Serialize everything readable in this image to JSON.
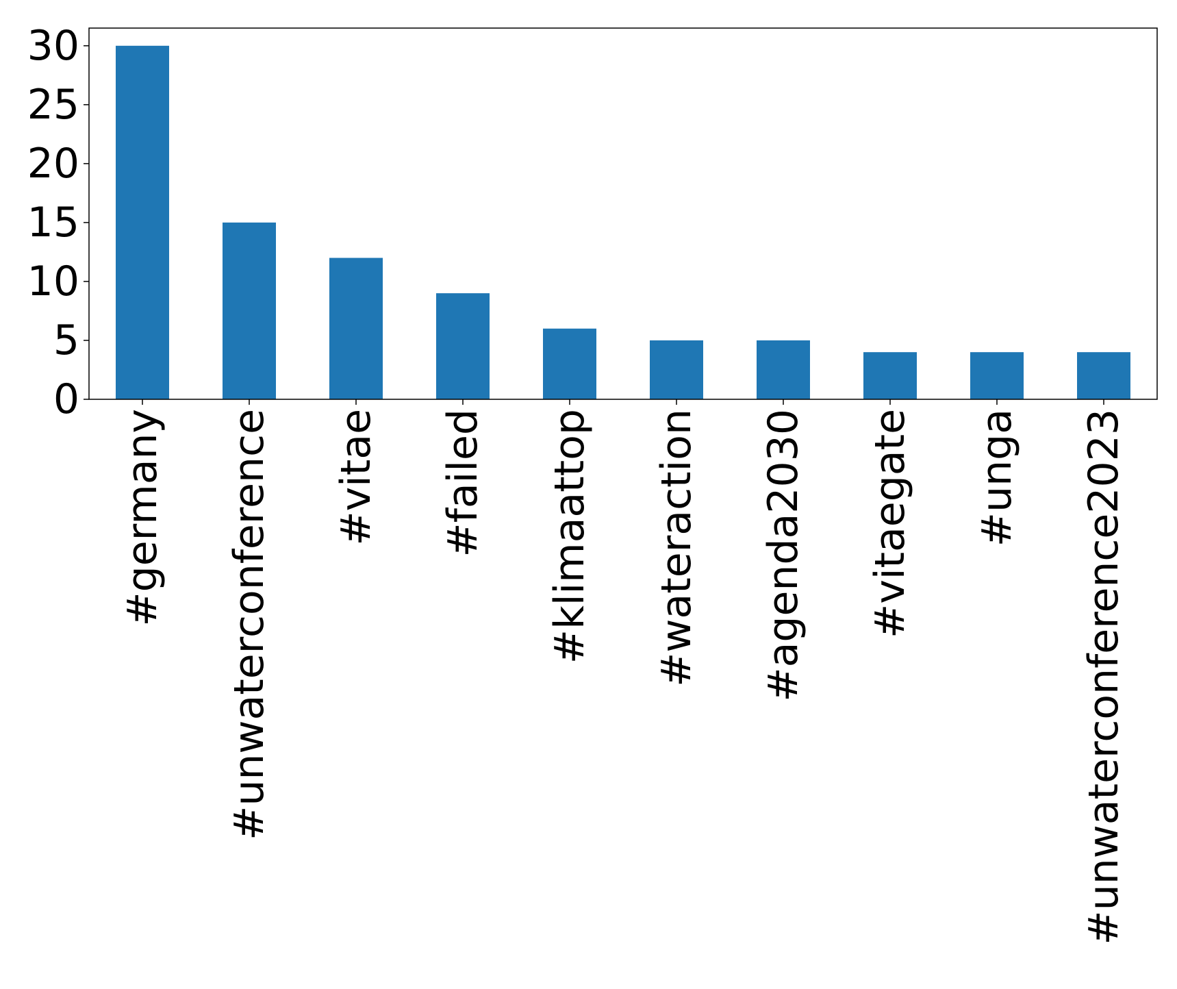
{
  "chart_data": {
    "type": "bar",
    "title": "",
    "xlabel": "",
    "ylabel": "",
    "categories": [
      "#germany",
      "#unwaterconference",
      "#vitae",
      "#failed",
      "#klimaattop",
      "#wateraction",
      "#agenda2030",
      "#vitaegate",
      "#unga",
      "#unwaterconference2023"
    ],
    "values": [
      30,
      15,
      12,
      9,
      6,
      5,
      5,
      4,
      4,
      4
    ],
    "ylim": [
      0,
      31.5
    ],
    "yticks": [
      0,
      5,
      10,
      15,
      20,
      25,
      30
    ],
    "grid": false,
    "legend": "none",
    "bar_color": "#1f77b4"
  }
}
